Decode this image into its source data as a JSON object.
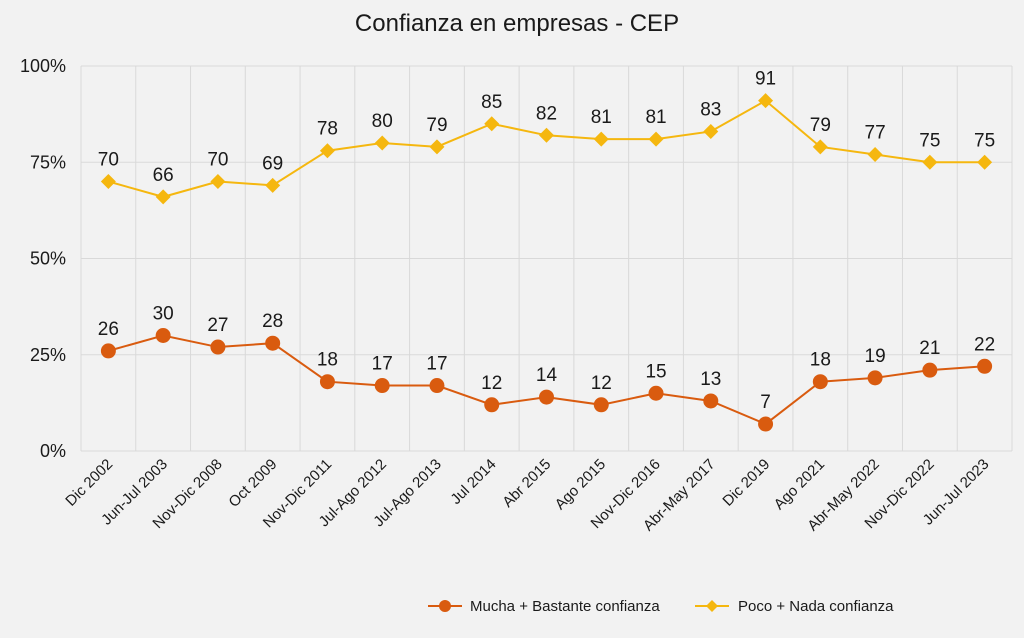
{
  "chart_data": {
    "type": "line",
    "title": "Confianza en empresas - CEP",
    "xlabel": "",
    "ylabel": "",
    "ylim": [
      0,
      100
    ],
    "yticks": [
      "0%",
      "25%",
      "50%",
      "75%",
      "100%"
    ],
    "grid": true,
    "legend_position": "bottom-right",
    "categories": [
      "Dic 2002",
      "Jun-Jul 2003",
      "Nov-Dic 2008",
      "Oct 2009",
      "Nov-Dic 2011",
      "Jul-Ago 2012",
      "Jul-Ago 2013",
      "Jul 2014",
      "Abr 2015",
      "Ago 2015",
      "Nov-Dic 2016",
      "Abr-May 2017",
      "Dic 2019",
      "Ago 2021",
      "Abr-May 2022",
      "Nov-Dic 2022",
      "Jun-Jul 2023"
    ],
    "series": [
      {
        "name": "Mucha + Bastante confianza",
        "color": "#d95b0f",
        "marker": "circle",
        "values": [
          26,
          30,
          27,
          28,
          18,
          17,
          17,
          12,
          14,
          12,
          15,
          13,
          7,
          18,
          19,
          21,
          22
        ]
      },
      {
        "name": "Poco + Nada confianza",
        "color": "#f5b70f",
        "marker": "diamond",
        "values": [
          70,
          66,
          70,
          69,
          78,
          80,
          79,
          85,
          82,
          81,
          81,
          83,
          91,
          79,
          77,
          75,
          75
        ]
      }
    ]
  }
}
